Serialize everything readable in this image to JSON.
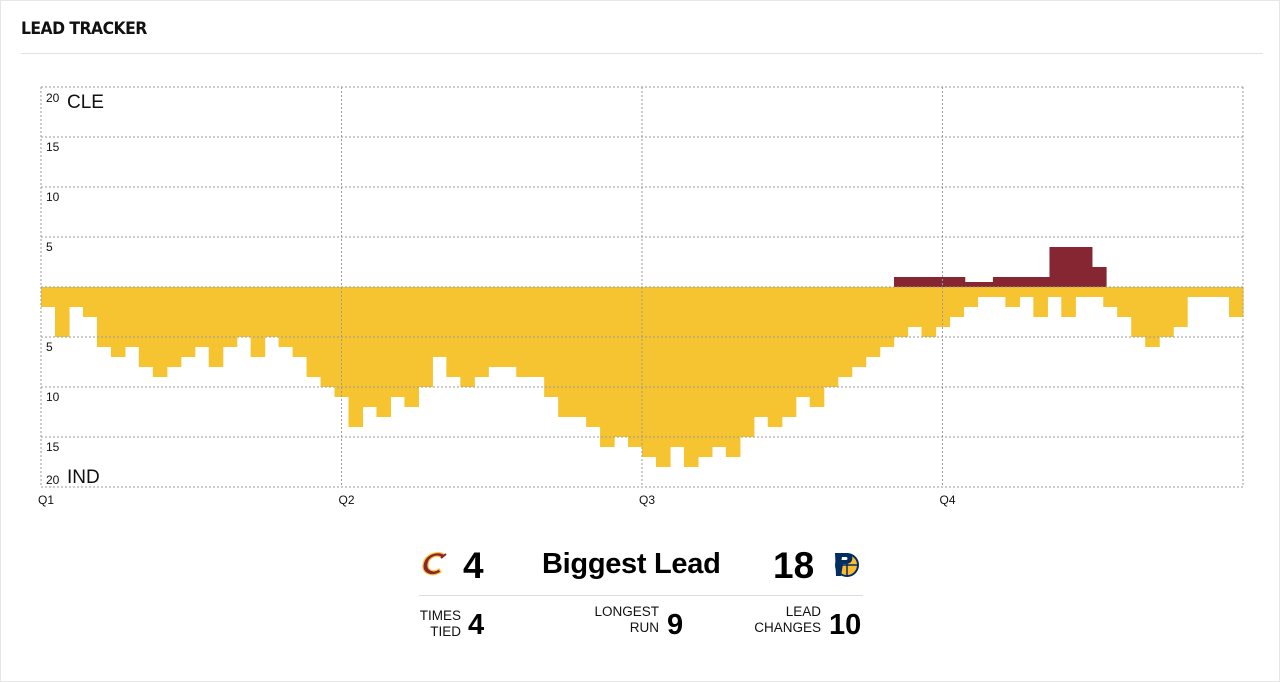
{
  "widget": {
    "title": "LEAD TRACKER"
  },
  "colors": {
    "home": "#862633",
    "away": "#F6C431",
    "grid": "#9a9a9a"
  },
  "chart_data": {
    "type": "bar",
    "title": "",
    "y_top_label": "CLE",
    "y_bottom_label": "IND",
    "ylim": [
      -20,
      20
    ],
    "y_ticks": [
      "20",
      "15",
      "10",
      "5",
      "",
      "5",
      "10",
      "15",
      "20"
    ],
    "x_ticks": [
      "Q1",
      "Q2",
      "Q3",
      "Q4"
    ],
    "grid": true,
    "series": [
      {
        "name": "CLE",
        "color": "#862633",
        "values": [
          1,
          1,
          1,
          1,
          1,
          0.5,
          0.5,
          1,
          1,
          1,
          1,
          4,
          4,
          4,
          2
        ]
      },
      {
        "name": "IND",
        "color": "#F6C431",
        "values": [
          -2,
          -5,
          -2,
          -3,
          -6,
          -7,
          -6,
          -8,
          -9,
          -8,
          -7,
          -6,
          -8,
          -6,
          -5,
          -7,
          -5,
          -6,
          -7,
          -9,
          -10,
          -11,
          -14,
          -12,
          -13,
          -11,
          -12,
          -10,
          -7,
          -9,
          -10,
          -9,
          -8,
          -8,
          -9,
          -9,
          -11,
          -13,
          -13,
          -14,
          -16,
          -15,
          -16,
          -17,
          -18,
          -16,
          -18,
          -17,
          -16,
          -17,
          -15,
          -13,
          -14,
          -13,
          -11,
          -12,
          -10,
          -9,
          -8,
          -7,
          -6,
          -5,
          -4,
          -5,
          -4,
          -3,
          -2,
          -1,
          -1,
          -2,
          -1,
          -3,
          -1,
          -3,
          -1,
          -1,
          -2,
          -3,
          -5,
          -6,
          -5,
          -4,
          -1,
          -1,
          -1,
          -3
        ]
      }
    ]
  },
  "summary": {
    "biggest_lead_label": "Biggest Lead",
    "home_biggest": "4",
    "away_biggest": "18",
    "home_logo": "cleveland-cavaliers-logo",
    "away_logo": "indiana-pacers-logo",
    "stats": [
      {
        "label_line1": "TIMES",
        "label_line2": "TIED",
        "value": "4"
      },
      {
        "label_line1": "LONGEST",
        "label_line2": "RUN",
        "value": "9"
      },
      {
        "label_line1": "LEAD",
        "label_line2": "CHANGES",
        "value": "10"
      }
    ]
  }
}
